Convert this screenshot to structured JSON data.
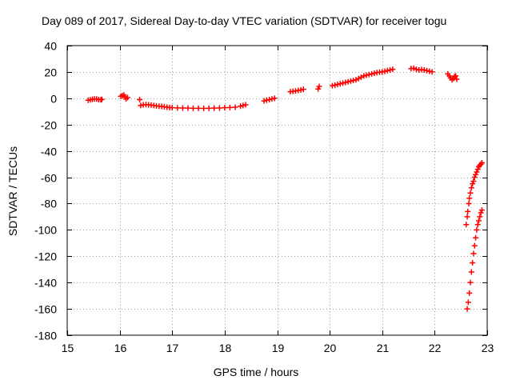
{
  "chart_data": {
    "type": "scatter",
    "title": "Day 089 of 2017, Sidereal Day-to-day VTEC variation (SDTVAR) for receiver togu",
    "xlabel": "GPS time / hours",
    "ylabel": "SDTVAR / TECUs",
    "xlim": [
      15,
      23
    ],
    "ylim": [
      -180,
      40
    ],
    "xticks": [
      15,
      16,
      17,
      18,
      19,
      20,
      21,
      22,
      23
    ],
    "yticks": [
      -180,
      -160,
      -140,
      -120,
      -100,
      -80,
      -60,
      -40,
      -20,
      0,
      20,
      40
    ],
    "grid": true,
    "marker": "+",
    "series": [
      {
        "name": "SDTVAR",
        "color": "#ff0000",
        "points": [
          [
            15.4,
            -1.5
          ],
          [
            15.44,
            -1.2
          ],
          [
            15.48,
            -0.8
          ],
          [
            15.52,
            -0.5
          ],
          [
            15.56,
            -0.6
          ],
          [
            15.6,
            -1.0
          ],
          [
            15.64,
            -1.2
          ],
          [
            15.66,
            -0.9
          ],
          [
            16.02,
            1.5
          ],
          [
            16.05,
            2.0
          ],
          [
            16.08,
            2.5
          ],
          [
            16.1,
            1.0
          ],
          [
            16.12,
            -0.5
          ],
          [
            16.15,
            0.5
          ],
          [
            16.38,
            -1.0
          ],
          [
            16.4,
            -5.5
          ],
          [
            16.45,
            -5.0
          ],
          [
            16.5,
            -4.8
          ],
          [
            16.55,
            -5.0
          ],
          [
            16.6,
            -5.2
          ],
          [
            16.65,
            -5.5
          ],
          [
            16.7,
            -5.8
          ],
          [
            16.75,
            -6.0
          ],
          [
            16.8,
            -6.2
          ],
          [
            16.85,
            -6.5
          ],
          [
            16.9,
            -6.8
          ],
          [
            16.95,
            -7.0
          ],
          [
            17.0,
            -7.2
          ],
          [
            17.1,
            -7.3
          ],
          [
            17.2,
            -7.4
          ],
          [
            17.3,
            -7.5
          ],
          [
            17.4,
            -7.6
          ],
          [
            17.5,
            -7.6
          ],
          [
            17.6,
            -7.7
          ],
          [
            17.7,
            -7.6
          ],
          [
            17.8,
            -7.5
          ],
          [
            17.9,
            -7.4
          ],
          [
            18.0,
            -7.2
          ],
          [
            18.1,
            -7.0
          ],
          [
            18.2,
            -6.8
          ],
          [
            18.3,
            -6.0
          ],
          [
            18.35,
            -5.5
          ],
          [
            18.4,
            -5.0
          ],
          [
            18.75,
            -2.0
          ],
          [
            18.8,
            -1.5
          ],
          [
            18.85,
            -1.0
          ],
          [
            18.9,
            -0.5
          ],
          [
            18.95,
            0.0
          ],
          [
            19.25,
            5.0
          ],
          [
            19.3,
            5.3
          ],
          [
            19.35,
            5.5
          ],
          [
            19.4,
            6.0
          ],
          [
            19.45,
            6.3
          ],
          [
            19.5,
            6.8
          ],
          [
            19.78,
            7.0
          ],
          [
            19.8,
            9.0
          ],
          [
            20.05,
            9.5
          ],
          [
            20.1,
            10.0
          ],
          [
            20.15,
            10.5
          ],
          [
            20.2,
            11.0
          ],
          [
            20.25,
            11.5
          ],
          [
            20.3,
            12.0
          ],
          [
            20.35,
            12.5
          ],
          [
            20.4,
            13.0
          ],
          [
            20.45,
            13.5
          ],
          [
            20.5,
            14.0
          ],
          [
            20.55,
            15.0
          ],
          [
            20.6,
            16.0
          ],
          [
            20.65,
            17.0
          ],
          [
            20.7,
            17.5
          ],
          [
            20.75,
            18.0
          ],
          [
            20.8,
            18.5
          ],
          [
            20.85,
            19.0
          ],
          [
            20.9,
            19.5
          ],
          [
            20.95,
            19.8
          ],
          [
            21.0,
            20.0
          ],
          [
            21.05,
            20.5
          ],
          [
            21.1,
            21.0
          ],
          [
            21.15,
            21.5
          ],
          [
            21.2,
            22.0
          ],
          [
            21.55,
            22.5
          ],
          [
            21.6,
            22.8
          ],
          [
            21.65,
            22.0
          ],
          [
            21.7,
            21.5
          ],
          [
            21.75,
            21.8
          ],
          [
            21.8,
            21.5
          ],
          [
            21.85,
            21.0
          ],
          [
            21.9,
            20.5
          ],
          [
            21.95,
            20.0
          ],
          [
            22.25,
            18.5
          ],
          [
            22.28,
            17.0
          ],
          [
            22.3,
            15.5
          ],
          [
            22.33,
            14.0
          ],
          [
            22.36,
            15.0
          ],
          [
            22.38,
            16.5
          ],
          [
            22.4,
            17.0
          ],
          [
            22.42,
            14.5
          ],
          [
            22.6,
            -96
          ],
          [
            22.62,
            -90
          ],
          [
            22.63,
            -86
          ],
          [
            22.65,
            -80
          ],
          [
            22.66,
            -76
          ],
          [
            22.68,
            -72
          ],
          [
            22.7,
            -68
          ],
          [
            22.72,
            -65
          ],
          [
            22.74,
            -63
          ],
          [
            22.76,
            -60
          ],
          [
            22.78,
            -58
          ],
          [
            22.8,
            -56
          ],
          [
            22.82,
            -54
          ],
          [
            22.84,
            -52
          ],
          [
            22.86,
            -51
          ],
          [
            22.88,
            -50
          ],
          [
            22.9,
            -49
          ],
          [
            22.62,
            -160
          ],
          [
            22.64,
            -155
          ],
          [
            22.66,
            -148
          ],
          [
            22.68,
            -140
          ],
          [
            22.7,
            -132
          ],
          [
            22.72,
            -125
          ],
          [
            22.74,
            -118
          ],
          [
            22.76,
            -112
          ],
          [
            22.78,
            -106
          ],
          [
            22.8,
            -100
          ],
          [
            22.82,
            -96
          ],
          [
            22.84,
            -93
          ],
          [
            22.86,
            -90
          ],
          [
            22.88,
            -87
          ],
          [
            22.9,
            -85
          ]
        ]
      }
    ]
  }
}
